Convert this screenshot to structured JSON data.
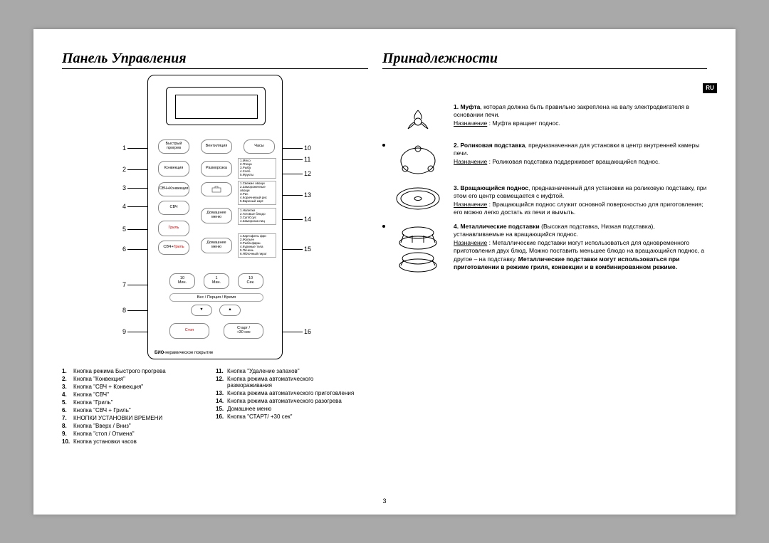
{
  "page_number": "3",
  "ru_badge": "RU",
  "left": {
    "title": "Панель Управления",
    "bio_label": "БИО-керамическое покрытие",
    "pointers_left": [
      "1",
      "2",
      "3",
      "4",
      "5",
      "6",
      "7",
      "8",
      "9"
    ],
    "pointers_right": [
      "10",
      "11",
      "12",
      "13",
      "14",
      "15",
      "16"
    ],
    "buttons": {
      "quick": "Быстрый\nпрогрев",
      "vent": "Вентиляция",
      "clock": "Часы",
      "conv": "Конвекция",
      "defrost": "Разморозка",
      "mwconv": "СВЧ+Конвекция",
      "mw": "СВЧ",
      "grill": "Гриль",
      "mwgrill": "СВЧ+Гриль",
      "home": "Домашнее\nменю",
      "tenmin": "10\nМин.",
      "onemin": "1\nМин.",
      "tensec": "10\nСек.",
      "weight": "Вес / Порция / Время",
      "down": "▼",
      "up": "▲",
      "stop": "Стоп",
      "start": "Старт /\n+30 сек"
    },
    "mini": {
      "defrost_list": "1.Мясо\n2.Птица\n3.Рыба\n4.Хлеб\n5.Фрукты",
      "auto1": "1.Свежие овощи\n2.Замороженные овощи\n3.Рис\n4.Коричневый рис\n5.Вареный карт.",
      "auto2": "1.Напитки\n2.Готовые блюдо\n3.Суп/Соус\n4.Заморозка пиц",
      "home_list": "1.Картофель фри\n2.Жульен\n3.Рыба фарш.\n4.Куриные тела\n5.Печень\n6.Яблочный пирог"
    },
    "legend_a": [
      {
        "n": "1.",
        "t": "Кнопка режима Быстрого прогрева"
      },
      {
        "n": "2.",
        "t": "Кнопка \"Конвекция\""
      },
      {
        "n": "3.",
        "t": "Кнопка \"СВЧ + Конвекция\""
      },
      {
        "n": "4.",
        "t": "Кнопка \"СВЧ\""
      },
      {
        "n": "5.",
        "t": "Кнопка \"Гриль\""
      },
      {
        "n": "6.",
        "t": "Кнопка \"СВЧ + Гриль\""
      },
      {
        "n": "7.",
        "t": "КНОПКИ УСТАНОВКИ ВРЕМЕНИ"
      },
      {
        "n": "8.",
        "t": "Кнопка \"Вверх / Вниз\""
      },
      {
        "n": "9.",
        "t": "Кнопка \"стоп / Отмена\""
      },
      {
        "n": "10.",
        "t": "Кнопка установки часов"
      }
    ],
    "legend_b": [
      {
        "n": "11.",
        "t": "Кнопка \"Удаление запахов\""
      },
      {
        "n": "12.",
        "t": "Кнопка режима автоматического размораживания"
      },
      {
        "n": "13.",
        "t": "Кнопка режима автоматического приготовления"
      },
      {
        "n": "14.",
        "t": "Кнопка режима автоматического разогрева"
      },
      {
        "n": "15.",
        "t": "Домашнее меню"
      },
      {
        "n": "16.",
        "t": "Кнопка \"СТАРТ/ +30 сек\""
      }
    ]
  },
  "right": {
    "title": "Принадлежности",
    "items": [
      {
        "n": "1.",
        "lead": "Муфта",
        "body": ", которая должна быть правильно закреплена на валу электродвигателя в основании печи.",
        "purpose_label": "Назначение",
        "purpose": " : Муфта вращает поднос."
      },
      {
        "n": "2.",
        "lead": "Роликовая подставка",
        "body": ", предназначенная для установки в центр внутренней камеры печи.",
        "purpose_label": "Назначение",
        "purpose": " : Роликовая подставка поддерживает вращающийся поднос."
      },
      {
        "n": "3.",
        "lead": "Вращающийся поднос",
        "body": ", предназначенный для установки на роликовую подставку, при этом его центр совмещается с муфтой.",
        "purpose_label": "Назначение",
        "purpose": " : Вращающийся поднос служит основной поверхностью для приготовления; его можно легко достать из печи и вымыть."
      },
      {
        "n": "4.",
        "lead": "Металлические подставки",
        "body": " (Высокая подставка, Низкая подставка), устанавливаемые на вращающийся поднос.",
        "purpose_label": "Назначение",
        "purpose_pre": " : Металлические подставки могут использоваться для одновременного приготовления двух блюд. Можно поставить меньшее блюдо на вращающийся поднос, а другое – на подставку. ",
        "purpose_bold": "Металлические подставки могут использоваться при приготовлении в режиме гриля, конвекции и в комбинированном режиме."
      }
    ]
  },
  "style": {
    "colors": {
      "page_bg": "#ffffff",
      "body_bg": "#a9a9a9",
      "text": "#000000",
      "accent_red": "#cc0000",
      "border_gray": "#888888"
    },
    "fonts": {
      "title_family": "Times New Roman",
      "title_style": "italic bold",
      "title_size_pt": 15,
      "body_size_pt": 6.5
    }
  }
}
